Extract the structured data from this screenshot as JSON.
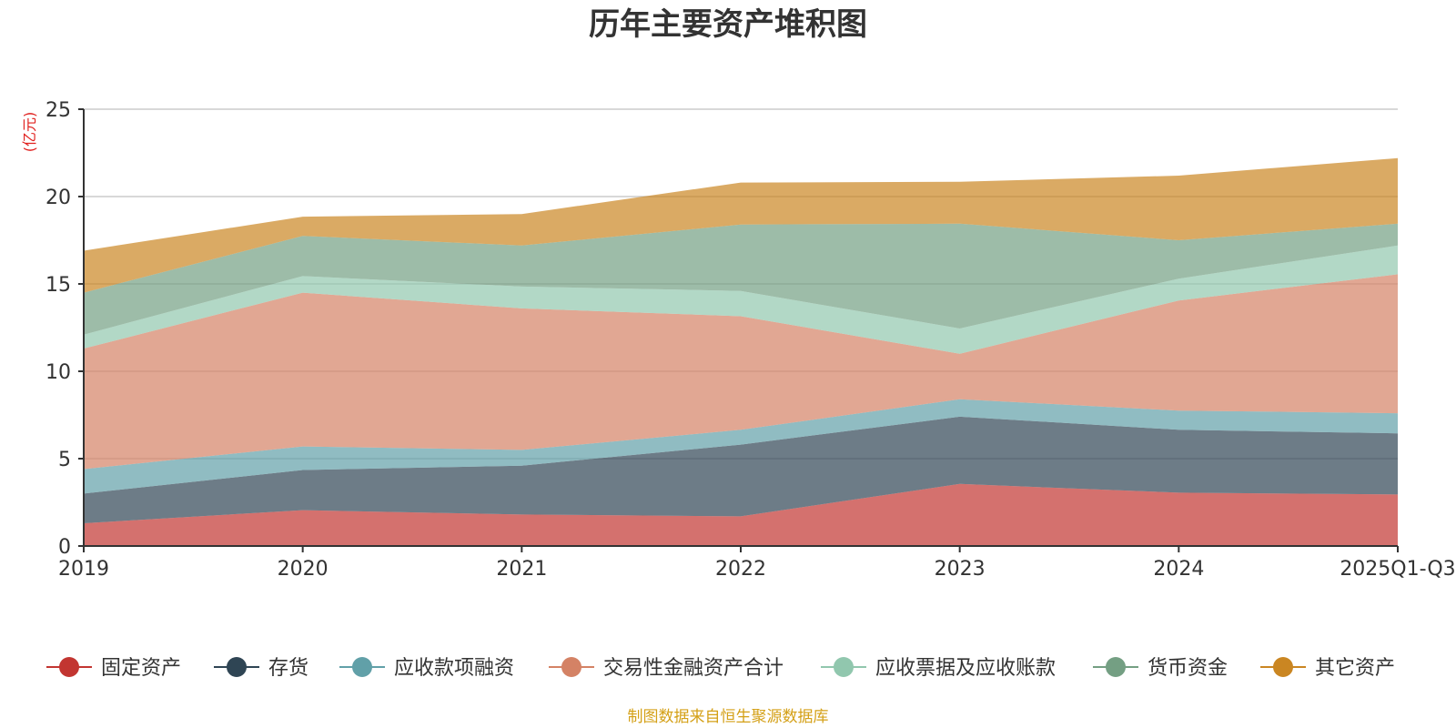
{
  "chart_data": {
    "type": "area",
    "stacked": true,
    "title": "历年主要资产堆积图",
    "ylabel": "(亿元)",
    "xlabel": "",
    "ylim": [
      0,
      25
    ],
    "yticks": [
      0,
      5,
      10,
      15,
      20,
      25
    ],
    "grid": true,
    "legend_position": "bottom",
    "categories": [
      "2019",
      "2020",
      "2021",
      "2022",
      "2023",
      "2024",
      "2025Q1-Q3"
    ],
    "series": [
      {
        "name": "固定资产",
        "color": "#c23531",
        "values": [
          1.3,
          2.05,
          1.8,
          1.7,
          3.55,
          3.05,
          2.95
        ]
      },
      {
        "name": "存货",
        "color": "#2f4554",
        "values": [
          1.7,
          2.3,
          2.8,
          4.1,
          3.85,
          3.6,
          3.5
        ]
      },
      {
        "name": "应收款项融资",
        "color": "#61a0a8",
        "values": [
          1.4,
          1.35,
          0.9,
          0.85,
          1.0,
          1.1,
          1.15
        ]
      },
      {
        "name": "交易性金融资产合计",
        "color": "#d48265",
        "values": [
          6.9,
          8.8,
          8.1,
          6.5,
          2.6,
          6.3,
          7.95
        ]
      },
      {
        "name": "应收票据及应收账款",
        "color": "#91c7ae",
        "values": [
          0.8,
          0.95,
          1.25,
          1.45,
          1.45,
          1.25,
          1.65
        ]
      },
      {
        "name": "货币资金",
        "color": "#749f83",
        "values": [
          2.4,
          2.3,
          2.35,
          3.8,
          6.0,
          2.2,
          1.25
        ]
      },
      {
        "name": "其它资产",
        "color": "#ca8622",
        "values": [
          2.4,
          1.1,
          1.8,
          2.4,
          2.4,
          3.7,
          3.75
        ]
      }
    ],
    "source_note": "制图数据来自恒生聚源数据库"
  }
}
